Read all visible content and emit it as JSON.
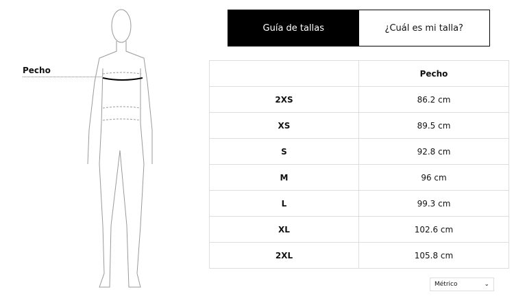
{
  "figure": {
    "measure_label": "Pecho"
  },
  "tabs": [
    {
      "label": "Guía de tallas",
      "active": true
    },
    {
      "label": "¿Cuál es mi talla?",
      "active": false
    }
  ],
  "table": {
    "headers": [
      "",
      "Pecho"
    ],
    "rows": [
      {
        "size": "2XS",
        "pecho": "86.2 cm"
      },
      {
        "size": "XS",
        "pecho": "89.5 cm"
      },
      {
        "size": "S",
        "pecho": "92.8 cm"
      },
      {
        "size": "M",
        "pecho": "96 cm"
      },
      {
        "size": "L",
        "pecho": "99.3 cm"
      },
      {
        "size": "XL",
        "pecho": "102.6 cm"
      },
      {
        "size": "2XL",
        "pecho": "105.8 cm"
      }
    ]
  },
  "unit_select": {
    "value": "Métrico",
    "icon": "chevron-down-icon"
  }
}
